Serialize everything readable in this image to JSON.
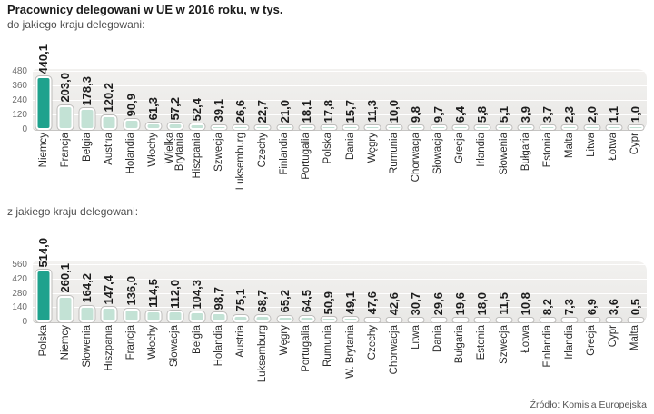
{
  "title": "Pracownicy delegowani w UE w 2016 roku, w tys.",
  "source": "Źródło: Komisja Europejska",
  "colors": {
    "bar_accent": "#1fa28d",
    "bar_fill": "#c3e2d5",
    "plot_bg": "#e9e8e6",
    "grid_line": "#ffffff"
  },
  "chart_data": [
    {
      "type": "bar",
      "title": "do jakiego kraju delegowani:",
      "categories": [
        "Niemcy",
        "Francja",
        "Belgia",
        "Austria",
        "Holandia",
        "Włochy",
        "Wielka\nBrytania",
        "Hiszpania",
        "Szwecja",
        "Luksemburg",
        "Czechy",
        "Finlandia",
        "Portugalia",
        "Polska",
        "Dania",
        "Węgry",
        "Rumunia",
        "Chorwacja",
        "Słowacja",
        "Grecja",
        "Irlandia",
        "Słowenia",
        "Bułgaria",
        "Estonia",
        "Malta",
        "Litwa",
        "Łotwa",
        "Cypr"
      ],
      "values": [
        440.1,
        203.0,
        178.3,
        120.2,
        90.9,
        61.3,
        57.2,
        52.4,
        39.1,
        26.6,
        22.7,
        21.0,
        18.1,
        17.8,
        15.7,
        11.3,
        10.0,
        9.8,
        9.7,
        6.4,
        5.8,
        5.1,
        3.9,
        3.7,
        2.3,
        2.0,
        1.1,
        1.0
      ],
      "ylim": [
        0,
        480
      ],
      "yticks": [
        0,
        120,
        240,
        360,
        480
      ],
      "grid": true,
      "legend": "none",
      "xlabel": "",
      "ylabel": ""
    },
    {
      "type": "bar",
      "title": "z jakiego kraju delegowani:",
      "categories": [
        "Polska",
        "Niemcy",
        "Słowenia",
        "Hiszpania",
        "Francja",
        "Włochy",
        "Słowacja",
        "Belgia",
        "Holandia",
        "Austria",
        "Luksemburg",
        "Węgry",
        "Portugalia",
        "Rumunia",
        "W. Brytania",
        "Czechy",
        "Chorwacja",
        "Litwa",
        "Dania",
        "Bułgaria",
        "Estonia",
        "Szwecja",
        "Łotwa",
        "Finlandia",
        "Irlandia",
        "Grecja",
        "Cypr",
        "Malta"
      ],
      "values": [
        514.0,
        260.1,
        164.2,
        147.4,
        136.0,
        114.5,
        112.0,
        104.3,
        98.7,
        75.1,
        68.7,
        65.2,
        64.5,
        50.9,
        49.1,
        47.6,
        42.6,
        30.7,
        29.6,
        19.6,
        18.0,
        11.5,
        10.8,
        8.2,
        7.3,
        6.9,
        3.6,
        0.5
      ],
      "ylim": [
        0,
        560
      ],
      "yticks": [
        0,
        140,
        280,
        420,
        560
      ],
      "grid": true,
      "legend": "none",
      "xlabel": "",
      "ylabel": ""
    }
  ]
}
